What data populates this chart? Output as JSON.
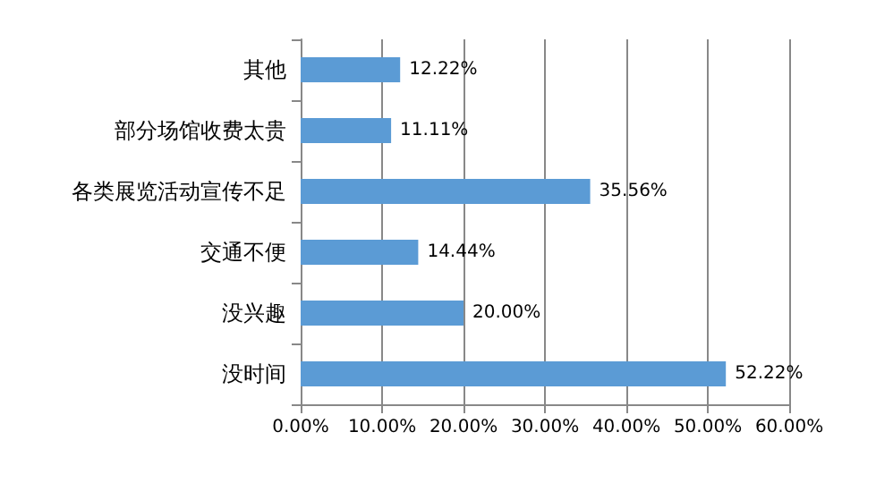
{
  "chart_data": {
    "type": "bar",
    "orientation": "horizontal",
    "categories": [
      "其他",
      "部分场馆收费太贵",
      "各类展览活动宣传不足",
      "交通不便",
      "没兴趣",
      "没时间"
    ],
    "values": [
      12.22,
      11.11,
      35.56,
      14.44,
      20.0,
      52.22
    ],
    "value_labels": [
      "12.22%",
      "11.11%",
      "35.56%",
      "14.44%",
      "20.00%",
      "52.22%"
    ],
    "color": "#5b9bd5",
    "xlim": [
      0,
      60
    ],
    "xticks": [
      {
        "value": 0,
        "label": "0.00%"
      },
      {
        "value": 10,
        "label": "10.00%"
      },
      {
        "value": 20,
        "label": "20.00%"
      },
      {
        "value": 30,
        "label": "30.00%"
      },
      {
        "value": 40,
        "label": "40.00%"
      },
      {
        "value": 50,
        "label": "50.00%"
      },
      {
        "value": 60,
        "label": "60.00%"
      }
    ],
    "grid": "x"
  }
}
